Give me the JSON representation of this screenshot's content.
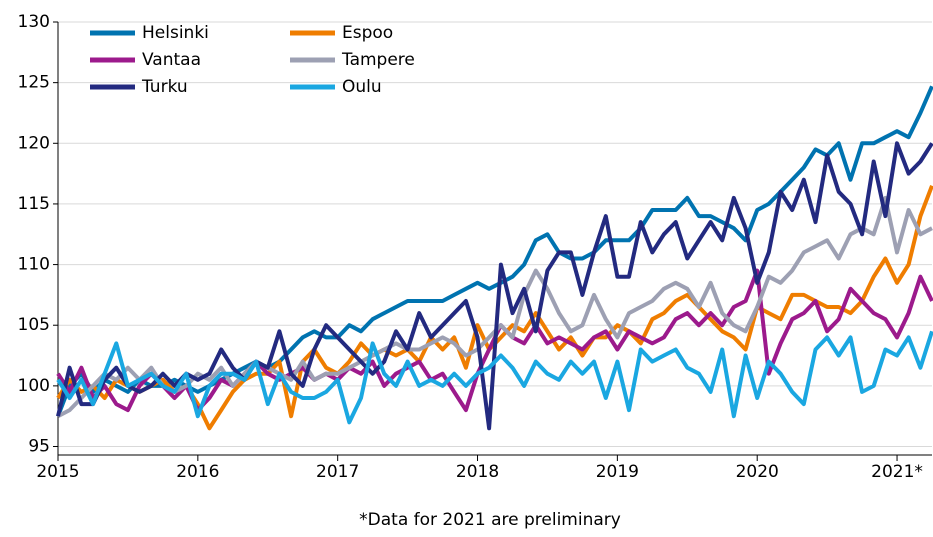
{
  "chart_data": {
    "type": "line",
    "note": "*Data for 2021 are preliminary",
    "x": [
      2015,
      2015.083,
      2015.167,
      2015.25,
      2015.333,
      2015.417,
      2015.5,
      2015.583,
      2015.667,
      2015.75,
      2015.833,
      2015.917,
      2016,
      2016.083,
      2016.167,
      2016.25,
      2016.333,
      2016.417,
      2016.5,
      2016.583,
      2016.667,
      2016.75,
      2016.833,
      2016.917,
      2017,
      2017.083,
      2017.167,
      2017.25,
      2017.333,
      2017.417,
      2017.5,
      2017.583,
      2017.667,
      2017.75,
      2017.833,
      2017.917,
      2018,
      2018.083,
      2018.167,
      2018.25,
      2018.333,
      2018.417,
      2018.5,
      2018.583,
      2018.667,
      2018.75,
      2018.833,
      2018.917,
      2019,
      2019.083,
      2019.167,
      2019.25,
      2019.333,
      2019.417,
      2019.5,
      2019.583,
      2019.667,
      2019.75,
      2019.833,
      2019.917,
      2020,
      2020.083,
      2020.167,
      2020.25,
      2020.333,
      2020.417,
      2020.5,
      2020.583,
      2020.667,
      2020.75,
      2020.833,
      2020.917,
      2021,
      2021.083,
      2021.167,
      2021.25
    ],
    "series": [
      {
        "name": "Helsinki",
        "color": "#0073b0",
        "values": [
          97.5,
          100,
          101,
          99.5,
          100.5,
          100,
          99.5,
          100.5,
          100,
          100,
          100.5,
          100,
          99.5,
          100,
          100.5,
          101,
          101.5,
          102,
          101.5,
          102,
          103,
          104,
          104.5,
          104,
          104,
          105,
          104.5,
          105.5,
          106,
          106.5,
          107,
          107,
          107,
          107,
          107.5,
          108,
          108.5,
          108,
          108.5,
          109,
          110,
          112,
          112.5,
          111,
          110.5,
          110.5,
          111,
          112,
          112,
          112,
          113,
          114.5,
          114.5,
          114.5,
          115.5,
          114,
          114,
          113.5,
          113,
          112,
          114.5,
          115,
          116,
          117,
          118,
          119.5,
          119,
          120,
          117,
          120,
          120,
          120.5,
          121,
          120.5,
          122.5,
          124.7
        ]
      },
      {
        "name": "Espoo",
        "color": "#ef7d00",
        "values": [
          99,
          100.5,
          99.5,
          100,
          99,
          100.5,
          100,
          99.5,
          100,
          100.5,
          99.5,
          100,
          98.5,
          96.5,
          98,
          99.5,
          100.5,
          101,
          101,
          102,
          97.5,
          102,
          103,
          101.5,
          101,
          102,
          103.5,
          102.5,
          103,
          102.5,
          103,
          102,
          104,
          103,
          104,
          101.5,
          105,
          103,
          104,
          105,
          104.5,
          106,
          104.5,
          103,
          104,
          102.5,
          104,
          104,
          105,
          104.5,
          103.5,
          105.5,
          106,
          107,
          107.5,
          106.5,
          105.5,
          104.5,
          104,
          103,
          106.5,
          106,
          105.5,
          107.5,
          107.5,
          107,
          106.5,
          106.5,
          106,
          107,
          109,
          110.5,
          108.5,
          110,
          114,
          116.5
        ]
      },
      {
        "name": "Vantaa",
        "color": "#9c1a8c",
        "values": [
          101,
          99.5,
          101.5,
          99,
          100,
          98.5,
          98,
          100,
          101,
          100,
          99,
          100,
          98,
          99,
          100.5,
          100,
          101,
          102,
          101,
          100.5,
          101,
          101.5,
          100.5,
          101,
          100.5,
          101.5,
          101,
          102,
          100,
          101,
          101.5,
          102,
          100.5,
          101,
          99.5,
          98,
          101,
          103,
          105,
          104,
          103.5,
          105,
          103.5,
          104,
          103.5,
          103,
          104,
          104.5,
          103,
          104.5,
          104,
          103.5,
          104,
          105.5,
          106,
          105,
          106,
          105,
          106.5,
          107,
          109.5,
          101,
          103.5,
          105.5,
          106,
          107,
          104.5,
          105.5,
          108,
          107,
          106,
          105.5,
          104,
          106,
          109,
          107
        ]
      },
      {
        "name": "Tampere",
        "color": "#9da0b3",
        "values": [
          97.5,
          98,
          99,
          100,
          101,
          100.5,
          101.5,
          100.5,
          101.5,
          100,
          99.5,
          100,
          101,
          100.5,
          101.5,
          100,
          101,
          102,
          101.5,
          101,
          100.5,
          102,
          100.5,
          101,
          101,
          101.5,
          102,
          102.5,
          103,
          103.5,
          103,
          103,
          103.5,
          104,
          103.5,
          102.5,
          103,
          104,
          105,
          104,
          107.5,
          109.5,
          108,
          106,
          104.5,
          105,
          107.5,
          105.5,
          104,
          106,
          106.5,
          107,
          108,
          108.5,
          108,
          106.5,
          108.5,
          106,
          105,
          104.5,
          106.5,
          109,
          108.5,
          109.5,
          111,
          111.5,
          112,
          110.5,
          112.5,
          113,
          112.5,
          115.5,
          111,
          114.5,
          112.5,
          113
        ]
      },
      {
        "name": "Turku",
        "color": "#232a80",
        "values": [
          97.5,
          101.5,
          98.5,
          98.5,
          100.5,
          101.5,
          100,
          99.5,
          100,
          101,
          100,
          101,
          100.5,
          101,
          103,
          101.5,
          100.5,
          102,
          101.5,
          104.5,
          101,
          100,
          103,
          105,
          104,
          103,
          102,
          101,
          102,
          104.5,
          103,
          106,
          104,
          105,
          106,
          107,
          104,
          96.5,
          110,
          106,
          108,
          104.5,
          109.5,
          111,
          111,
          107.5,
          111,
          114,
          109,
          109,
          113.5,
          111,
          112.5,
          113.5,
          110.5,
          112,
          113.5,
          112,
          115.5,
          113,
          108.5,
          111,
          116,
          114.5,
          117,
          113.5,
          119,
          116,
          115,
          112.5,
          118.5,
          114,
          120,
          117.5,
          118.5,
          120
        ]
      },
      {
        "name": "Oulu",
        "color": "#1aa7e1",
        "values": [
          100.5,
          99,
          100.5,
          98.5,
          101,
          103.5,
          100,
          100.5,
          101,
          100,
          99.5,
          101,
          97.5,
          100,
          101,
          101,
          100.5,
          102,
          98.5,
          101,
          99.5,
          99,
          99,
          99.5,
          100.5,
          97,
          99,
          103.5,
          101,
          100,
          102,
          100,
          100.5,
          100,
          101,
          100,
          101,
          101.5,
          102.5,
          101.5,
          100,
          102,
          101,
          100.5,
          102,
          101,
          102,
          99,
          102,
          98,
          103,
          102,
          102.5,
          103,
          101.5,
          101,
          99.5,
          103,
          97.5,
          102.5,
          99,
          102,
          101,
          99.5,
          98.5,
          103,
          104,
          102.5,
          104,
          99.5,
          100,
          103,
          102.5,
          104,
          101.5,
          104.5
        ]
      }
    ],
    "xlim": [
      2015,
      2021.25
    ],
    "xticks": [
      2015,
      2016,
      2017,
      2018,
      2019,
      2020,
      {
        "value": 2021,
        "label": "2021*"
      }
    ],
    "ylim": [
      94.3,
      130
    ],
    "yticks": [
      95,
      100,
      105,
      110,
      115,
      120,
      125,
      130
    ],
    "grid": true,
    "legend": "upper left"
  }
}
